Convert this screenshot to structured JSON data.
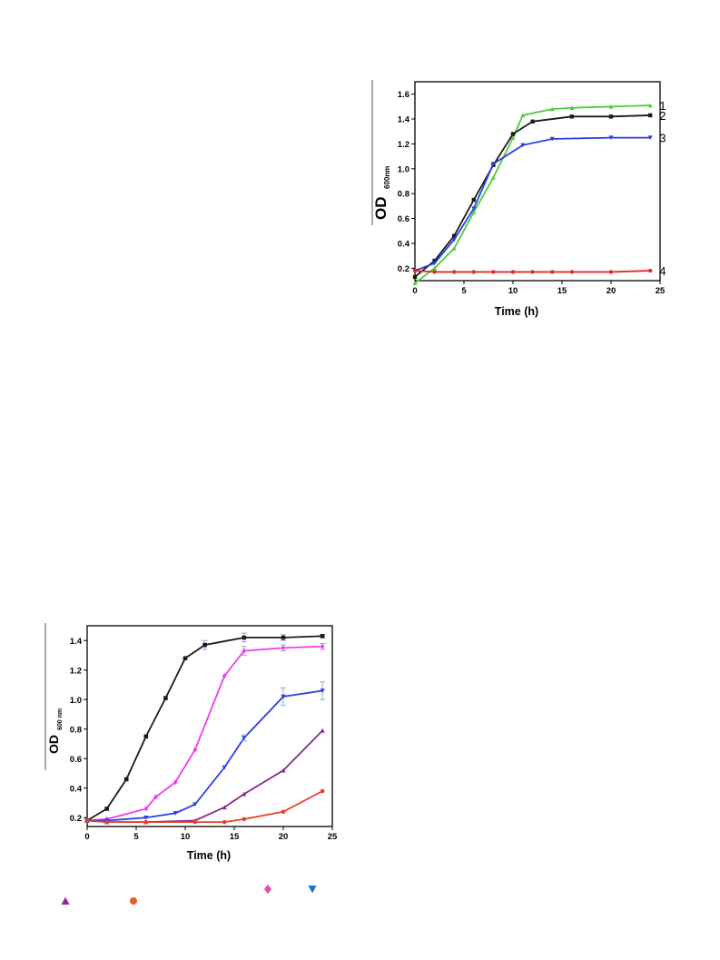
{
  "chart_data": [
    {
      "id": "top",
      "type": "line",
      "xlabel": "Time (h)",
      "ylabel": "OD",
      "ylabel_sub": "600nm",
      "xlim": [
        0,
        25
      ],
      "ylim": [
        0.1,
        1.7
      ],
      "xticks": [
        0,
        5,
        10,
        15,
        20,
        25
      ],
      "yticks": [
        0.2,
        0.4,
        0.6,
        0.8,
        1.0,
        1.2,
        1.4,
        1.6
      ],
      "ytick_labels": [
        "0.2",
        "0.4",
        "0.6",
        "0.8",
        "1.0",
        "1.2",
        "1.4",
        "1.6"
      ],
      "grid": false,
      "series": [
        {
          "name": "1",
          "color": "#4ecb3c",
          "marker": "triangle-up",
          "x": [
            0,
            2,
            4,
            6,
            8,
            10,
            11,
            14,
            16,
            20,
            24
          ],
          "y": [
            0.08,
            0.2,
            0.36,
            0.65,
            0.93,
            1.25,
            1.43,
            1.48,
            1.49,
            1.5,
            1.51
          ]
        },
        {
          "name": "2",
          "color": "#1a1a1a",
          "marker": "square",
          "x": [
            0,
            2,
            4,
            6,
            8,
            10,
            12,
            16,
            20,
            24
          ],
          "y": [
            0.13,
            0.26,
            0.46,
            0.75,
            1.03,
            1.28,
            1.38,
            1.42,
            1.42,
            1.43
          ]
        },
        {
          "name": "3",
          "color": "#2b3fe0",
          "marker": "triangle-down",
          "x": [
            0,
            2,
            4,
            6,
            8,
            11,
            14,
            20,
            24
          ],
          "y": [
            0.18,
            0.24,
            0.43,
            0.68,
            1.04,
            1.19,
            1.24,
            1.25,
            1.25
          ]
        },
        {
          "name": "4",
          "color": "#e02d22",
          "marker": "circle",
          "x": [
            0,
            2,
            4,
            6,
            8,
            10,
            12,
            14,
            16,
            20,
            24
          ],
          "y": [
            0.18,
            0.17,
            0.17,
            0.17,
            0.17,
            0.17,
            0.17,
            0.17,
            0.17,
            0.17,
            0.18
          ]
        }
      ]
    },
    {
      "id": "bottom",
      "type": "line",
      "xlabel": "Time (h)",
      "ylabel": "OD",
      "ylabel_sub": "600 nm",
      "xlim": [
        0,
        25
      ],
      "ylim": [
        0.14,
        1.5
      ],
      "xticks": [
        0,
        5,
        10,
        15,
        20,
        25
      ],
      "yticks": [
        0.2,
        0.4,
        0.6,
        0.8,
        1.0,
        1.2,
        1.4
      ],
      "ytick_labels": [
        "0.2",
        "0.4",
        "0.6",
        "0.8",
        "1.0",
        "1.2",
        "1.4"
      ],
      "grid": false,
      "series": [
        {
          "color": "#1a1a1a",
          "marker": "square",
          "x": [
            0,
            2,
            4,
            6,
            8,
            10,
            12,
            16,
            20,
            24
          ],
          "y": [
            0.18,
            0.26,
            0.46,
            0.75,
            1.01,
            1.28,
            1.37,
            1.42,
            1.42,
            1.43
          ],
          "err": [
            0,
            0,
            0,
            0,
            0,
            0,
            0.03,
            0.03,
            0.02,
            0.01
          ]
        },
        {
          "color": "#f03cf0",
          "marker": "diamond",
          "x": [
            0,
            2,
            6,
            7,
            9,
            11,
            14,
            16,
            20,
            24
          ],
          "y": [
            0.18,
            0.19,
            0.26,
            0.34,
            0.44,
            0.66,
            1.16,
            1.33,
            1.35,
            1.36
          ],
          "err": [
            0,
            0,
            0,
            0,
            0,
            0,
            0,
            0.03,
            0.02,
            0.02
          ]
        },
        {
          "color": "#2b3fe0",
          "marker": "triangle-down",
          "x": [
            0,
            2,
            6,
            9,
            11,
            14,
            16,
            20,
            24
          ],
          "y": [
            0.18,
            0.18,
            0.2,
            0.23,
            0.29,
            0.54,
            0.74,
            1.02,
            1.06
          ],
          "err": [
            0,
            0,
            0,
            0,
            0,
            0,
            0.02,
            0.06,
            0.06
          ]
        },
        {
          "color": "#8a2a8c",
          "marker": "triangle-up",
          "x": [
            0,
            2,
            6,
            11,
            14,
            16,
            20,
            24
          ],
          "y": [
            0.18,
            0.17,
            0.17,
            0.18,
            0.27,
            0.36,
            0.52,
            0.79
          ],
          "err": [
            0,
            0,
            0,
            0,
            0,
            0,
            0,
            0
          ]
        },
        {
          "color": "#e8402a",
          "marker": "circle",
          "x": [
            0,
            2,
            6,
            11,
            14,
            16,
            20,
            24
          ],
          "y": [
            0.18,
            0.17,
            0.17,
            0.17,
            0.17,
            0.19,
            0.24,
            0.38
          ],
          "err": [
            0,
            0,
            0,
            0,
            0,
            0,
            0,
            0
          ]
        }
      ]
    }
  ],
  "legend_markers": [
    {
      "icon": "diamond",
      "color": "#e24ba6"
    },
    {
      "icon": "triangle-down",
      "color": "#2272c3"
    },
    {
      "icon": "triangle-up",
      "color": "#8e2b9a"
    },
    {
      "icon": "circle",
      "color": "#ec5a2a"
    }
  ]
}
